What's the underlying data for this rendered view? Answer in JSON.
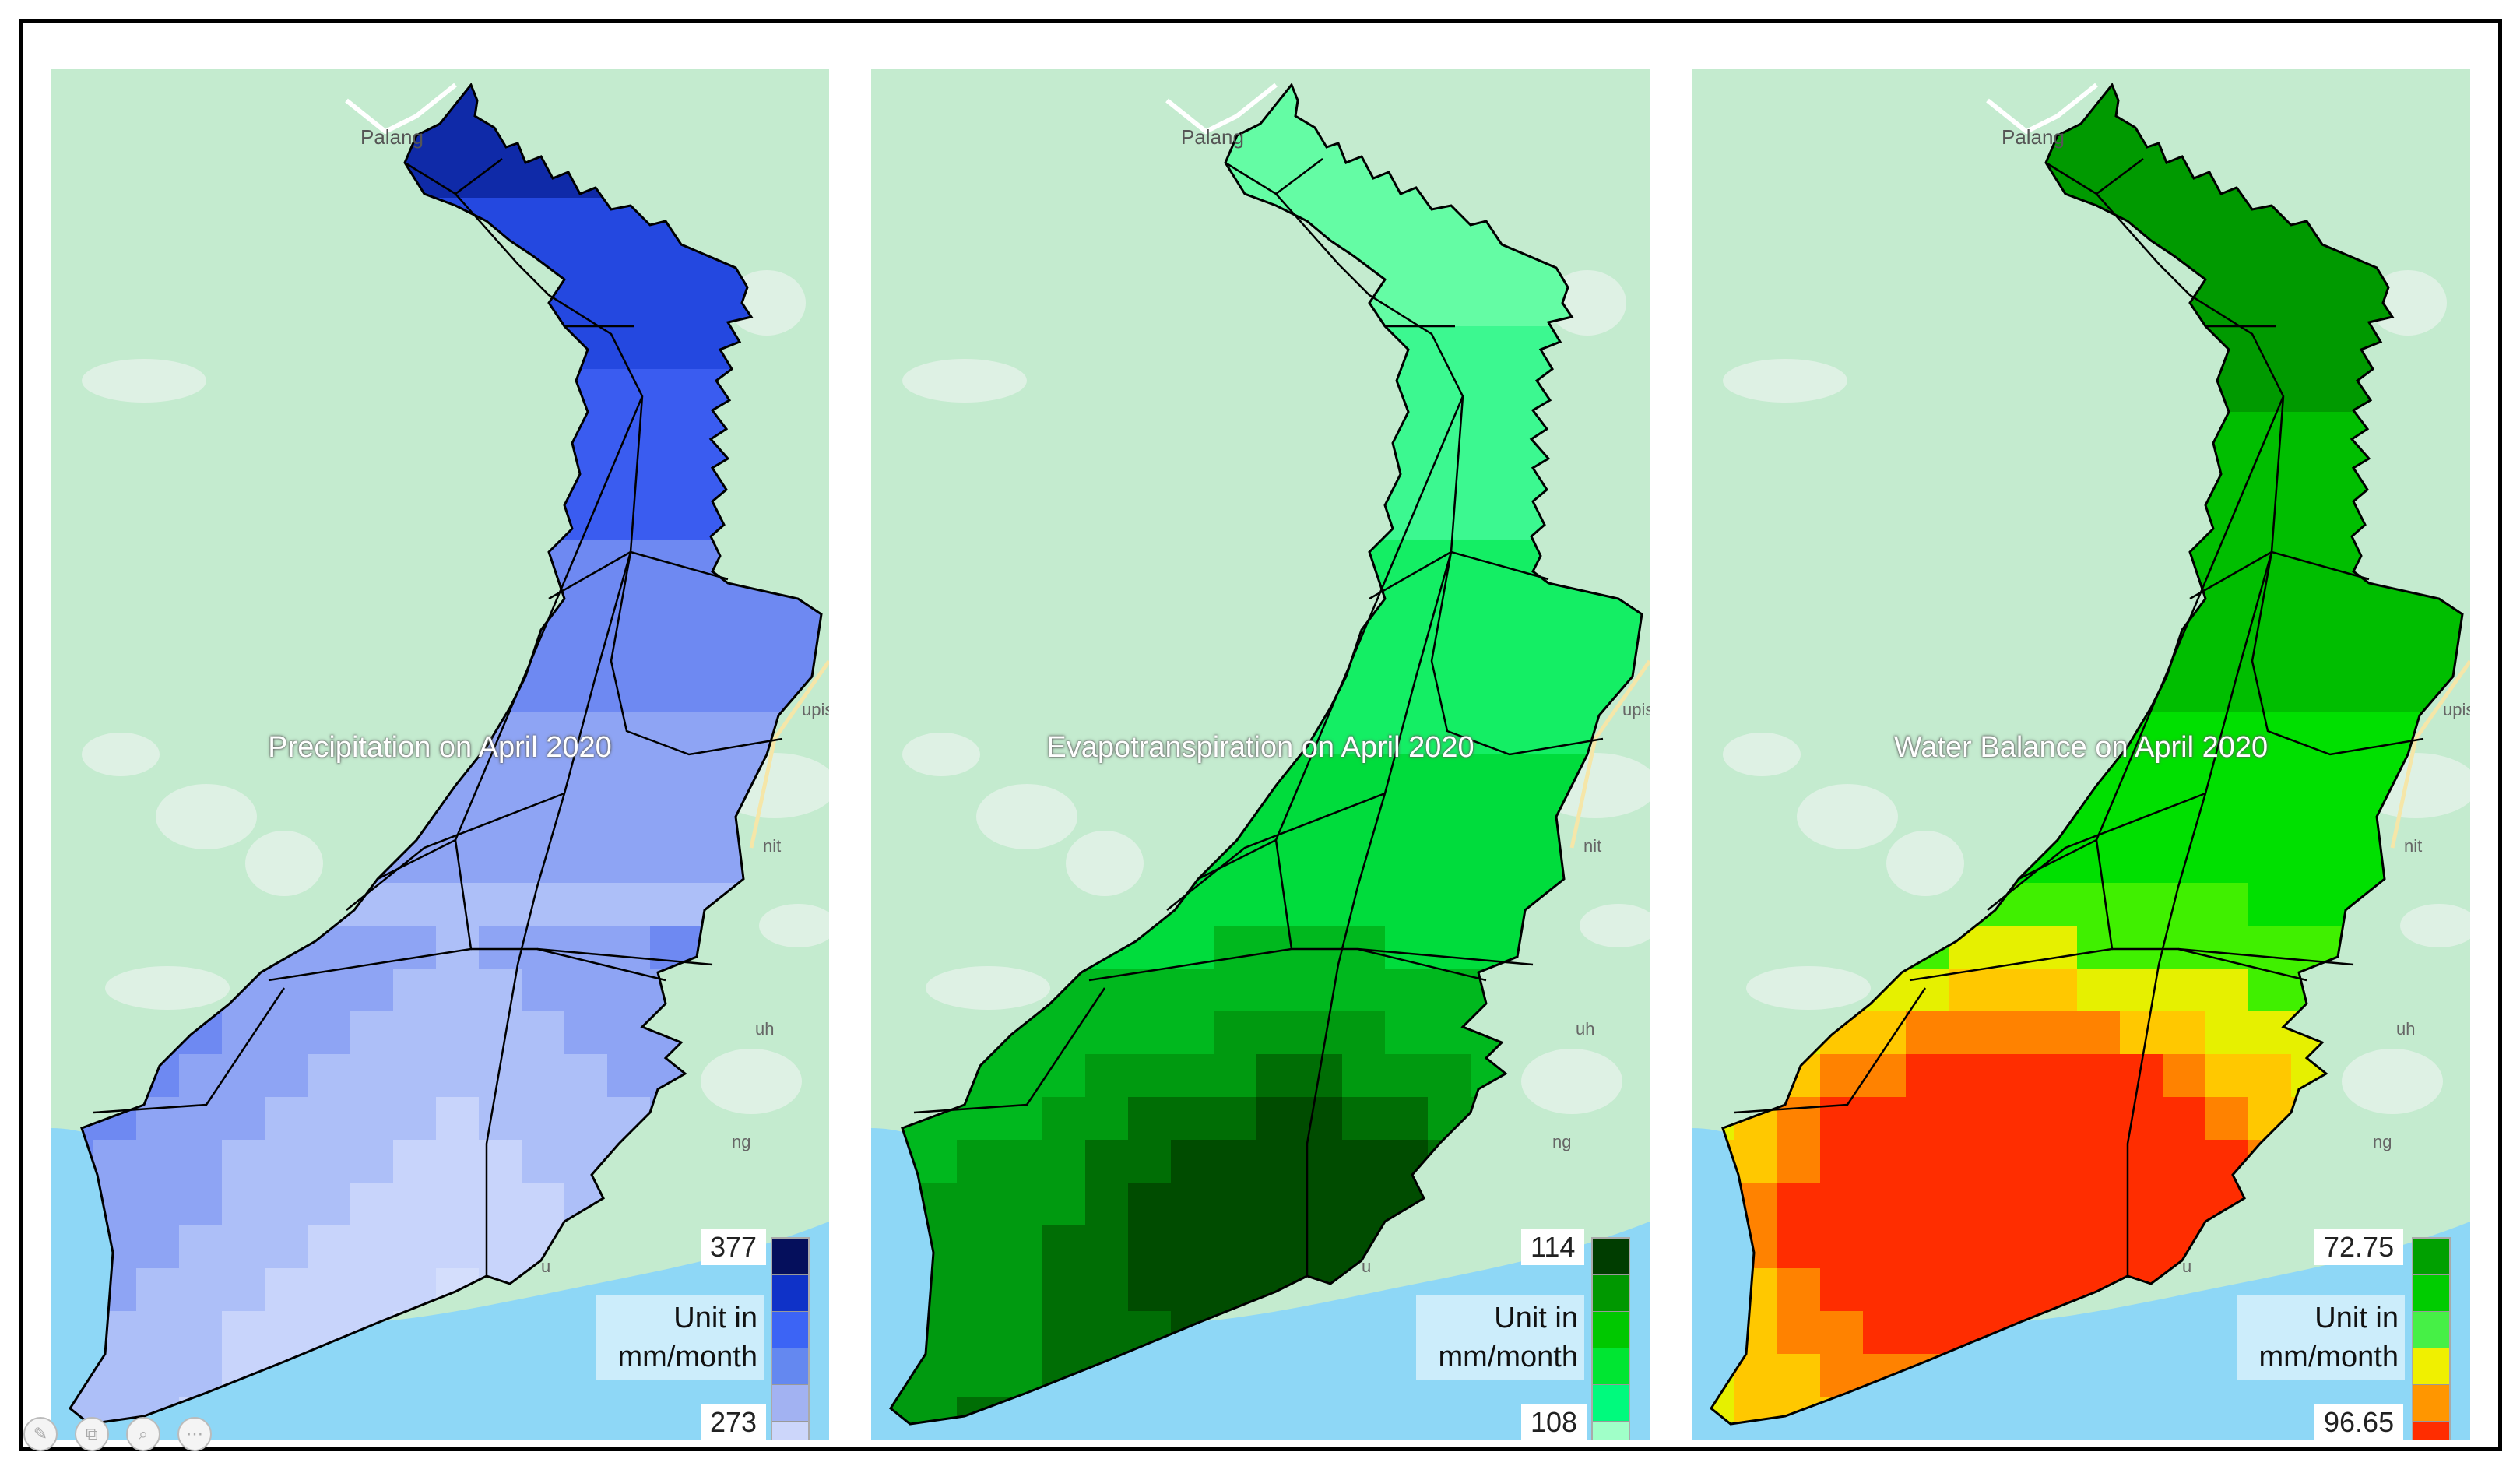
{
  "colors": {
    "land": "#c4ebcf",
    "sea": "#8ed7f6",
    "road": "#ffffff",
    "boundary": "#000000"
  },
  "town_labels": {
    "north": "Palang",
    "east_1": "upisa",
    "east_2": "nit",
    "east_3": "uh",
    "east_4": "ng",
    "south": "u"
  },
  "panels": [
    {
      "id": "precipitation",
      "title": "Precipitation on April 2020",
      "legend": {
        "max": "377",
        "min": "273",
        "unit_line1": "Unit in",
        "unit_line2": "mm/month",
        "colors": [
          "#050f5c",
          "#0f32c8",
          "#3c64f5",
          "#6488f0",
          "#a2b2f2",
          "#ccd6fa"
        ]
      },
      "map_colors": [
        "#0f2aa8",
        "#2448e0",
        "#3a5cf0",
        "#6e89f2",
        "#8ea4f4",
        "#adbff8",
        "#c8d4fb",
        "#d4defc"
      ]
    },
    {
      "id": "evapotranspiration",
      "title": "Evapotranspiration on April 2020",
      "legend": {
        "max": "114",
        "min": "108",
        "unit_line1": "Unit in",
        "unit_line2": "mm/month",
        "colors": [
          "#003d00",
          "#009800",
          "#00c800",
          "#00e632",
          "#00fa7d",
          "#a0ffc8"
        ]
      },
      "map_colors": [
        "#64fca4",
        "#3cf890",
        "#14ee64",
        "#00dc3c",
        "#00b81e",
        "#009a10",
        "#006e05",
        "#004c00"
      ]
    },
    {
      "id": "water-balance",
      "title": "Water Balance on April 2020",
      "legend": {
        "max": "72.75",
        "min": "96.65",
        "unit_line1": "Unit in",
        "unit_line2": "mm/month",
        "colors": [
          "#00a000",
          "#00cc00",
          "#46f046",
          "#f0f000",
          "#ff9600",
          "#ff2d00"
        ]
      },
      "map_colors": [
        "#009a00",
        "#00be00",
        "#00e000",
        "#40f000",
        "#e6f000",
        "#ffc800",
        "#ff8200",
        "#ff2d00"
      ]
    }
  ],
  "toolbar": {
    "tools": [
      {
        "icon": "pencil-icon",
        "glyph": "✎"
      },
      {
        "icon": "copy-icon",
        "glyph": "⧉"
      },
      {
        "icon": "zoom-icon",
        "glyph": "⌕"
      },
      {
        "icon": "more-icon",
        "glyph": "⋯"
      }
    ]
  }
}
